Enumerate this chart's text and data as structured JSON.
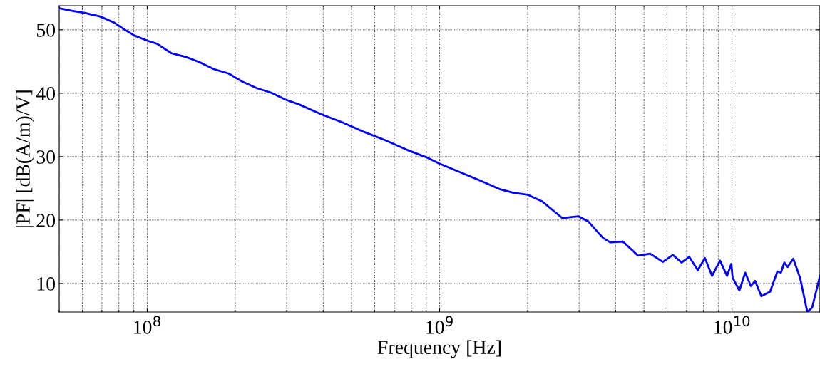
{
  "chart_data": {
    "type": "line",
    "xlabel": "Frequency [Hz]",
    "ylabel": "|PF| [dB(A/m)/V]",
    "log": "x",
    "grid": true,
    "line_style": "solid",
    "marker": "none",
    "xlim": [
      50000000.0,
      20000000000.0
    ],
    "xticks": [
      {
        "value": 100000000.0,
        "label": "10$^{8}$"
      },
      {
        "value": 1000000000.0,
        "label": "10$^{9}$"
      },
      {
        "value": 10000000000.0,
        "label": "10$^{10}$"
      }
    ],
    "ylim": [
      5.5,
      53.8
    ],
    "yticks": [
      10,
      20,
      30,
      40,
      50
    ],
    "x": [
      50100000.0,
      55200000.0,
      60700000.0,
      69000000.0,
      77300000.0,
      83900000.0,
      90400000.0,
      100000000.0,
      108000000.0,
      121000000.0,
      136000000.0,
      151000000.0,
      169000000.0,
      190000000.0,
      212000000.0,
      237000000.0,
      265000000.0,
      297000000.0,
      332000000.0,
      393000000.0,
      465000000.0,
      551000000.0,
      651000000.0,
      771000000.0,
      912000000.0,
      1000000000.0,
      1140000000.0,
      1350000000.0,
      1600000000.0,
      1790000000.0,
      2000000000.0,
      2250000000.0,
      2630000000.0,
      2980000000.0,
      3220000000.0,
      3620000000.0,
      3830000000.0,
      4240000000.0,
      4770000000.0,
      5250000000.0,
      5800000000.0,
      6280000000.0,
      6720000000.0,
      7140000000.0,
      7640000000.0,
      8080000000.0,
      8550000000.0,
      9100000000.0,
      9620000000.0,
      9950000000.0,
      10050000000.0,
      10600000000.0,
      11100000000.0,
      11600000000.0,
      12000000000.0,
      12600000000.0,
      13500000000.0,
      14300000000.0,
      14700000000.0,
      15100000000.0,
      15500000000.0,
      16200000000.0,
      17100000000.0,
      18100000000.0,
      18800000000.0,
      20000000000.0
    ],
    "series": [
      {
        "color": "#0000ff",
        "values": [
          53.4,
          53.0,
          52.7,
          52.1,
          51.1,
          50.0,
          49.1,
          48.3,
          47.8,
          46.3,
          45.7,
          44.9,
          43.8,
          43.1,
          41.8,
          40.8,
          40.1,
          39.0,
          38.2,
          36.7,
          35.4,
          33.9,
          32.6,
          31.1,
          29.8,
          28.9,
          27.8,
          26.4,
          24.9,
          24.3,
          24.0,
          22.9,
          20.3,
          20.6,
          19.8,
          17.2,
          16.5,
          16.6,
          14.4,
          14.7,
          13.4,
          14.5,
          13.3,
          14.2,
          12.1,
          14.0,
          11.2,
          13.6,
          11.2,
          13.1,
          10.9,
          8.9,
          11.7,
          9.6,
          10.4,
          8.0,
          8.7,
          11.9,
          11.7,
          13.3,
          12.6,
          13.9,
          10.9,
          5.5,
          6.2,
          11.2
        ]
      }
    ]
  }
}
